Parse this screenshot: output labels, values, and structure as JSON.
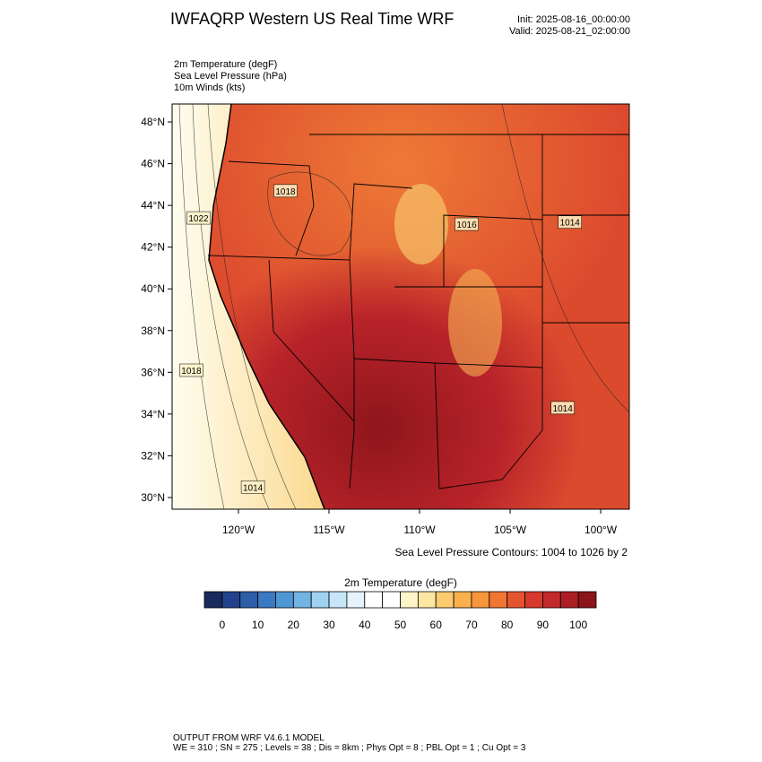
{
  "title": "IWFAQRP Western US Real Time WRF",
  "init": "Init: 2025-08-16_00:00:00",
  "valid": "Valid: 2025-08-21_02:00:00",
  "fields": [
    "2m Temperature   (degF)",
    "Sea Level Pressure   (hPa)",
    "10m Winds   (kts)"
  ],
  "map": {
    "xlim": [
      -123.66,
      -98.42
    ],
    "ylim": [
      29.44,
      48.86
    ],
    "xticks": [
      {
        "value": -120,
        "label": "120°W"
      },
      {
        "value": -115,
        "label": "115°W"
      },
      {
        "value": -110,
        "label": "110°W"
      },
      {
        "value": -105,
        "label": "105°W"
      },
      {
        "value": -100,
        "label": "100°W"
      }
    ],
    "yticks": [
      {
        "value": 30,
        "label": "30°N"
      },
      {
        "value": 32,
        "label": "32°N"
      },
      {
        "value": 34,
        "label": "34°N"
      },
      {
        "value": 36,
        "label": "36°N"
      },
      {
        "value": 38,
        "label": "38°N"
      },
      {
        "value": 40,
        "label": "40°N"
      },
      {
        "value": 42,
        "label": "42°N"
      },
      {
        "value": 44,
        "label": "44°N"
      },
      {
        "value": 46,
        "label": "46°N"
      },
      {
        "value": 48,
        "label": "48°N"
      }
    ],
    "contour_labels": [
      {
        "text": "1022",
        "lon": -122.2,
        "lat": 43.4
      },
      {
        "text": "1018",
        "lon": -122.6,
        "lat": 36.1
      },
      {
        "text": "1014",
        "lon": -119.2,
        "lat": 30.5
      },
      {
        "text": "1014",
        "lon": -101.7,
        "lat": 43.2
      },
      {
        "text": "1014",
        "lon": -102.1,
        "lat": 34.3
      },
      {
        "text": "1016",
        "lon": -107.4,
        "lat": 43.1
      },
      {
        "text": "1018",
        "lon": -117.4,
        "lat": 44.7
      }
    ],
    "contour_note": "Sea Level Pressure Contours: 1004 to 1026 by 2"
  },
  "colorbar": {
    "title": "2m Temperature  (degF)",
    "levels": [
      0,
      5,
      10,
      15,
      20,
      25,
      30,
      35,
      40,
      45,
      50,
      55,
      60,
      65,
      70,
      75,
      80,
      85,
      90,
      95,
      100
    ],
    "colors": [
      "#1b2a5c",
      "#22428c",
      "#2c5da9",
      "#3b79c1",
      "#4f97d3",
      "#72b4e3",
      "#9fd2f1",
      "#c6e6f8",
      "#e4f3fc",
      "#ffffff",
      "#ffffff",
      "#fff3c9",
      "#fde5a2",
      "#fccb6f",
      "#f9b04d",
      "#f6963d",
      "#f07633",
      "#e55430",
      "#d73a2c",
      "#c3292a",
      "#ab1e23",
      "#8c151a"
    ],
    "ticks": [
      0,
      10,
      20,
      30,
      40,
      50,
      60,
      70,
      80,
      90,
      100
    ]
  },
  "footer": [
    "OUTPUT FROM WRF V4.6.1 MODEL",
    "WE = 310 ; SN = 275 ; Levels = 38 ; Dis = 8km ; Phys Opt = 8 ; PBL Opt = 1 ; Cu Opt = 3"
  ]
}
